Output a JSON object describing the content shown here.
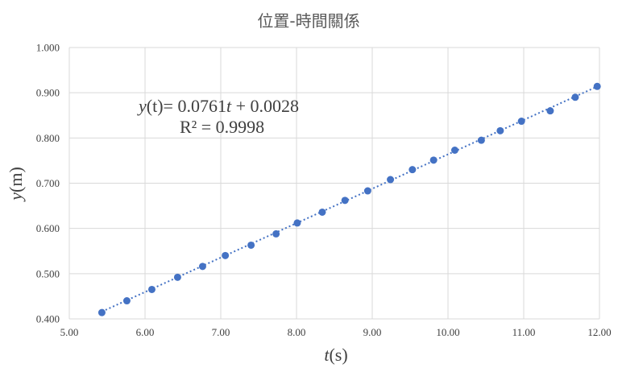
{
  "chart_data": {
    "type": "scatter",
    "title": "位置-時間關係",
    "x_axis": {
      "label_var": "t",
      "label_unit": "(s)",
      "range": [
        5.0,
        12.0
      ],
      "ticks": [
        "5.00",
        "6.00",
        "7.00",
        "8.00",
        "9.00",
        "10.00",
        "11.00",
        "12.00"
      ]
    },
    "y_axis": {
      "label_var": "y",
      "label_unit": "(m)",
      "range": [
        0.4,
        1.0
      ],
      "ticks": [
        "0.400",
        "0.500",
        "0.600",
        "0.700",
        "0.800",
        "0.900",
        "1.000"
      ]
    },
    "grid": true,
    "series": [
      {
        "color": "#4472c4",
        "points": [
          {
            "x": 5.43,
            "y": 0.414
          },
          {
            "x": 5.76,
            "y": 0.44
          },
          {
            "x": 6.09,
            "y": 0.465
          },
          {
            "x": 6.43,
            "y": 0.492
          },
          {
            "x": 6.76,
            "y": 0.516
          },
          {
            "x": 7.06,
            "y": 0.54
          },
          {
            "x": 7.4,
            "y": 0.563
          },
          {
            "x": 7.73,
            "y": 0.588
          },
          {
            "x": 8.01,
            "y": 0.612
          },
          {
            "x": 8.34,
            "y": 0.636
          },
          {
            "x": 8.64,
            "y": 0.662
          },
          {
            "x": 8.94,
            "y": 0.683
          },
          {
            "x": 9.24,
            "y": 0.708
          },
          {
            "x": 9.53,
            "y": 0.73
          },
          {
            "x": 9.81,
            "y": 0.751
          },
          {
            "x": 10.09,
            "y": 0.773
          },
          {
            "x": 10.44,
            "y": 0.795
          },
          {
            "x": 10.69,
            "y": 0.816
          },
          {
            "x": 10.97,
            "y": 0.837
          },
          {
            "x": 11.35,
            "y": 0.86
          },
          {
            "x": 11.68,
            "y": 0.89
          },
          {
            "x": 11.97,
            "y": 0.914
          }
        ]
      }
    ],
    "trendline": {
      "style": "dotted",
      "color": "#4472c4",
      "slope": 0.0761,
      "intercept": 0.0028,
      "x_from": 5.43,
      "x_to": 11.97
    },
    "annotation": {
      "fn": "y",
      "lhs_rest": "(t)= 0.0761",
      "var": "t",
      "rhs_rest": " + 0.0028",
      "r2": "R² = 0.9998"
    }
  }
}
